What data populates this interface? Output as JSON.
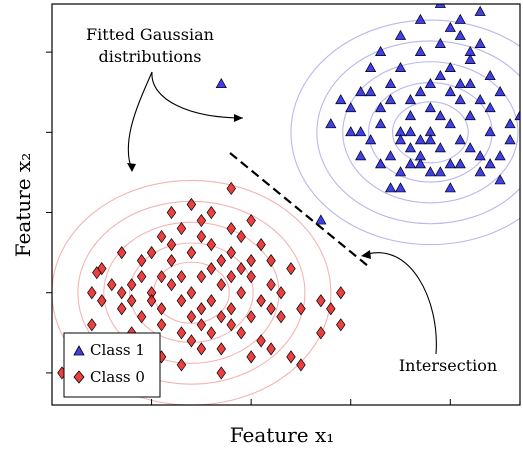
{
  "chart_data": {
    "type": "scatter",
    "title": "",
    "xlabel": "Feature x₁",
    "ylabel": "Feature x₂",
    "xlim": [
      -0.5,
      4.2
    ],
    "ylim": [
      -0.4,
      4.6
    ],
    "xticks": [
      0.5,
      1.5,
      2.5,
      3.5,
      4.5
    ],
    "yticks": [
      0,
      1,
      2,
      3,
      4
    ],
    "grid": false,
    "legend": {
      "position": "bottom-left",
      "entries": [
        "Class 1",
        "Class 0"
      ]
    },
    "annotations": {
      "fitted_line1": "Fitted Gaussian",
      "fitted_line2": "distributions",
      "intersection": "Intersection"
    },
    "series": [
      {
        "name": "Class 1",
        "marker": "triangle",
        "color": "#1f1fe6",
        "contour_color": "#b8b8ee",
        "center": [
          3.3,
          3.0
        ],
        "contour_radii": [
          0.38,
          0.62,
          0.88,
          1.14,
          1.4
        ],
        "points": [
          [
            2.3,
            3.1
          ],
          [
            2.5,
            3.3
          ],
          [
            2.6,
            3.0
          ],
          [
            2.7,
            2.9
          ],
          [
            2.8,
            3.1
          ],
          [
            2.9,
            2.7
          ],
          [
            3.0,
            3.0
          ],
          [
            3.1,
            2.6
          ],
          [
            3.2,
            2.9
          ],
          [
            3.3,
            3.0
          ],
          [
            3.4,
            2.8
          ],
          [
            3.5,
            3.1
          ],
          [
            3.6,
            2.9
          ],
          [
            3.7,
            3.2
          ],
          [
            3.8,
            3.4
          ],
          [
            3.9,
            3.0
          ],
          [
            4.0,
            2.7
          ],
          [
            3.1,
            3.4
          ],
          [
            3.3,
            3.6
          ],
          [
            3.5,
            3.8
          ],
          [
            3.7,
            3.9
          ],
          [
            3.9,
            3.7
          ],
          [
            3.2,
            4.0
          ],
          [
            3.4,
            4.1
          ],
          [
            3.6,
            4.2
          ],
          [
            3.8,
            4.1
          ],
          [
            3.0,
            4.2
          ],
          [
            3.2,
            4.4
          ],
          [
            3.5,
            4.3
          ],
          [
            3.4,
            4.6
          ],
          [
            3.8,
            4.5
          ],
          [
            3.6,
            4.4
          ],
          [
            2.7,
            3.5
          ],
          [
            2.8,
            3.3
          ],
          [
            2.9,
            3.6
          ],
          [
            3.0,
            3.8
          ],
          [
            3.1,
            3.2
          ],
          [
            3.3,
            3.3
          ],
          [
            3.5,
            3.5
          ],
          [
            3.7,
            3.6
          ],
          [
            4.1,
            3.1
          ],
          [
            4.2,
            3.2
          ],
          [
            3.2,
            2.6
          ],
          [
            3.4,
            2.5
          ],
          [
            3.6,
            2.6
          ],
          [
            3.8,
            2.5
          ],
          [
            4.0,
            2.4
          ],
          [
            2.9,
            2.3
          ],
          [
            3.0,
            2.5
          ],
          [
            3.3,
            2.5
          ],
          [
            3.5,
            2.6
          ],
          [
            3.1,
            2.8
          ],
          [
            2.6,
            2.7
          ],
          [
            2.8,
            2.6
          ],
          [
            3.0,
            2.3
          ],
          [
            3.2,
            2.7
          ],
          [
            3.4,
            3.2
          ],
          [
            3.6,
            3.4
          ],
          [
            3.9,
            3.3
          ],
          [
            2.9,
            3.4
          ],
          [
            2.5,
            3.0
          ],
          [
            2.6,
            3.5
          ],
          [
            3.7,
            2.8
          ],
          [
            3.8,
            2.7
          ],
          [
            3.3,
            2.9
          ],
          [
            3.1,
            3.0
          ],
          [
            4.1,
            2.9
          ],
          [
            3.5,
            2.3
          ],
          [
            3.9,
            2.6
          ],
          [
            3.0,
            2.9
          ],
          [
            3.2,
            3.5
          ],
          [
            3.4,
            3.7
          ],
          [
            3.6,
            3.6
          ],
          [
            2.7,
            3.8
          ],
          [
            2.8,
            4.0
          ],
          [
            1.2,
            3.6
          ],
          [
            2.2,
            1.9
          ],
          [
            3.7,
            4.0
          ],
          [
            4.0,
            3.5
          ],
          [
            2.4,
            3.4
          ]
        ]
      },
      {
        "name": "Class 0",
        "marker": "diamond",
        "color": "#e61f1f",
        "contour_color": "#f4b4b4",
        "center": [
          0.9,
          1.0
        ],
        "contour_radii": [
          0.38,
          0.62,
          0.88,
          1.14,
          1.4
        ],
        "points": [
          [
            0.0,
            1.3
          ],
          [
            0.1,
            1.1
          ],
          [
            0.2,
            1.0
          ],
          [
            0.3,
            0.9
          ],
          [
            0.4,
            1.2
          ],
          [
            0.5,
            1.0
          ],
          [
            0.6,
            0.8
          ],
          [
            0.7,
            1.1
          ],
          [
            0.8,
            0.9
          ],
          [
            0.9,
            1.0
          ],
          [
            1.0,
            1.2
          ],
          [
            1.1,
            0.9
          ],
          [
            1.2,
            1.1
          ],
          [
            1.3,
            0.8
          ],
          [
            1.4,
            1.0
          ],
          [
            1.5,
            1.2
          ],
          [
            1.6,
            0.9
          ],
          [
            1.7,
            1.1
          ],
          [
            0.5,
            1.5
          ],
          [
            0.6,
            1.7
          ],
          [
            0.7,
            1.6
          ],
          [
            0.8,
            1.8
          ],
          [
            0.9,
            1.5
          ],
          [
            1.0,
            1.7
          ],
          [
            1.1,
            1.6
          ],
          [
            1.2,
            1.4
          ],
          [
            1.3,
            1.5
          ],
          [
            0.7,
            2.0
          ],
          [
            0.9,
            2.1
          ],
          [
            1.1,
            2.0
          ],
          [
            1.3,
            2.3
          ],
          [
            0.8,
            0.5
          ],
          [
            0.9,
            0.4
          ],
          [
            1.0,
            0.6
          ],
          [
            1.1,
            0.5
          ],
          [
            1.2,
            0.3
          ],
          [
            1.3,
            0.6
          ],
          [
            1.4,
            0.5
          ],
          [
            1.5,
            0.7
          ],
          [
            1.6,
            0.4
          ],
          [
            1.7,
            0.3
          ],
          [
            0.6,
            0.6
          ],
          [
            0.4,
            0.7
          ],
          [
            0.3,
            0.5
          ],
          [
            0.2,
            0.8
          ],
          [
            0.1,
            0.4
          ],
          [
            0.0,
            0.9
          ],
          [
            -0.1,
            0.6
          ],
          [
            -0.3,
            0.4
          ],
          [
            -0.4,
            0.0
          ],
          [
            0.6,
            0.2
          ],
          [
            0.5,
            0.3
          ],
          [
            0.8,
            0.1
          ],
          [
            1.0,
            0.3
          ],
          [
            1.2,
            0.0
          ],
          [
            1.5,
            0.2
          ],
          [
            1.9,
            0.2
          ],
          [
            2.0,
            0.1
          ],
          [
            2.2,
            0.5
          ],
          [
            2.3,
            0.8
          ],
          [
            2.2,
            0.9
          ],
          [
            1.9,
            1.3
          ],
          [
            1.8,
            1.0
          ],
          [
            1.7,
            1.4
          ],
          [
            1.6,
            1.6
          ],
          [
            1.5,
            1.4
          ],
          [
            1.4,
            1.7
          ],
          [
            1.4,
            1.3
          ],
          [
            1.3,
            1.2
          ],
          [
            1.2,
            0.7
          ],
          [
            1.1,
            1.3
          ],
          [
            1.0,
            0.8
          ],
          [
            0.9,
            0.7
          ],
          [
            0.8,
            1.2
          ],
          [
            0.7,
            1.4
          ],
          [
            0.6,
            1.2
          ],
          [
            0.4,
            1.4
          ],
          [
            0.3,
            1.1
          ],
          [
            -0.1,
            1.0
          ],
          [
            -0.05,
            1.25
          ],
          [
            0.2,
            1.5
          ],
          [
            1.0,
            1.9
          ],
          [
            1.3,
            1.8
          ],
          [
            1.5,
            1.9
          ],
          [
            1.8,
            0.7
          ],
          [
            2.0,
            0.8
          ],
          [
            2.4,
            1.0
          ],
          [
            2.4,
            0.6
          ],
          [
            1.7,
            0.8
          ],
          [
            0.5,
            0.9
          ]
        ]
      }
    ]
  }
}
